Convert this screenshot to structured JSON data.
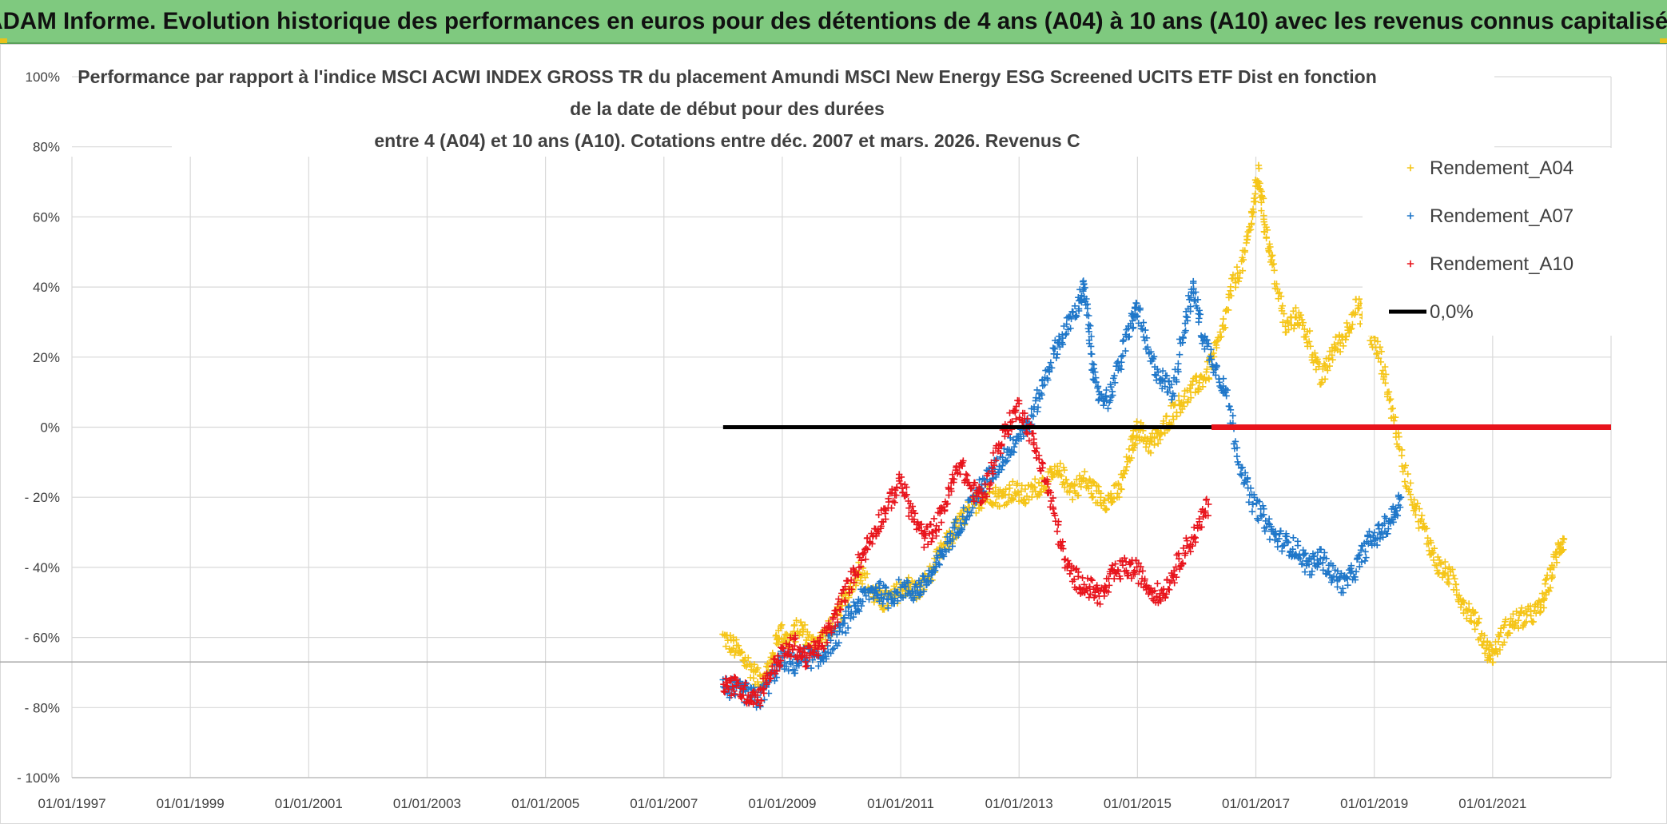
{
  "banner": {
    "text": "ADAM Informe. Evolution historique des performances en euros pour des détentions de 4 ans (A04) à 10 ans (A10) avec les revenus connus capitalisés"
  },
  "colors": {
    "banner_bg": "#7fc97f",
    "A04": "#f5c518",
    "A07": "#1f77c9",
    "A10": "#e8141c",
    "zero": "#000000"
  },
  "chart_data": {
    "type": "scatter",
    "title_lines": [
      "Performance par rapport à l'indice MSCI ACWI INDEX GROSS TR  du placement Amundi MSCI New Energy ESG Screened UCITS ETF Dist en fonction",
      "de la date de début pour des durées",
      "entre 4 (A04) et 10 ans (A10). Cotations entre déc. 2007 et mars. 2026. Revenus C"
    ],
    "xlabel": "",
    "ylabel": "",
    "x_range": [
      1997.0,
      2023.0
    ],
    "ylim": [
      -100,
      100
    ],
    "y_ticks": [
      {
        "value": 100,
        "label": "100%"
      },
      {
        "value": 80,
        "label": "80%"
      },
      {
        "value": 60,
        "label": "60%"
      },
      {
        "value": 40,
        "label": "40%"
      },
      {
        "value": 20,
        "label": "20%"
      },
      {
        "value": 0,
        "label": "0%"
      },
      {
        "value": -20,
        "label": "- 20%"
      },
      {
        "value": -40,
        "label": "- 40%"
      },
      {
        "value": -60,
        "label": "- 60%"
      },
      {
        "value": -80,
        "label": "- 80%"
      },
      {
        "value": -100,
        "label": "- 100%"
      }
    ],
    "x_ticks": [
      {
        "value": 1997,
        "label": "01/01/1997"
      },
      {
        "value": 1999,
        "label": "01/01/1999"
      },
      {
        "value": 2001,
        "label": "01/01/2001"
      },
      {
        "value": 2003,
        "label": "01/01/2003"
      },
      {
        "value": 2005,
        "label": "01/01/2005"
      },
      {
        "value": 2007,
        "label": "01/01/2007"
      },
      {
        "value": 2009,
        "label": "01/01/2009"
      },
      {
        "value": 2011,
        "label": "01/01/2011"
      },
      {
        "value": 2013,
        "label": "01/01/2013"
      },
      {
        "value": 2015,
        "label": "01/01/2015"
      },
      {
        "value": 2017,
        "label": "01/01/2017"
      },
      {
        "value": 2019,
        "label": "01/01/2019"
      },
      {
        "value": 2021,
        "label": "01/01/2021"
      }
    ],
    "grid": true,
    "legend_position": "top-right",
    "reference_line_y": -67,
    "series": [
      {
        "name": "Rendement_A04",
        "color": "#f5c518",
        "marker": "+",
        "points": [
          [
            2008.0,
            -60
          ],
          [
            2008.2,
            -63
          ],
          [
            2008.4,
            -67
          ],
          [
            2008.6,
            -72
          ],
          [
            2008.8,
            -68
          ],
          [
            2008.95,
            -58
          ],
          [
            2009.1,
            -61
          ],
          [
            2009.3,
            -57
          ],
          [
            2009.5,
            -62
          ],
          [
            2009.7,
            -60
          ],
          [
            2009.9,
            -55
          ],
          [
            2010.1,
            -48
          ],
          [
            2010.3,
            -40
          ],
          [
            2010.5,
            -47
          ],
          [
            2010.7,
            -50
          ],
          [
            2010.9,
            -48
          ],
          [
            2011.1,
            -45
          ],
          [
            2011.3,
            -47
          ],
          [
            2011.5,
            -42
          ],
          [
            2011.7,
            -35
          ],
          [
            2011.9,
            -30
          ],
          [
            2012.1,
            -25
          ],
          [
            2012.3,
            -21
          ],
          [
            2012.5,
            -19
          ],
          [
            2012.7,
            -20
          ],
          [
            2012.9,
            -18
          ],
          [
            2013.1,
            -20
          ],
          [
            2013.3,
            -17
          ],
          [
            2013.5,
            -15
          ],
          [
            2013.7,
            -13
          ],
          [
            2013.9,
            -18
          ],
          [
            2014.1,
            -15
          ],
          [
            2014.3,
            -19
          ],
          [
            2014.5,
            -21
          ],
          [
            2014.7,
            -18
          ],
          [
            2014.9,
            -6
          ],
          [
            2015.0,
            0
          ],
          [
            2015.2,
            -5
          ],
          [
            2015.4,
            -2
          ],
          [
            2015.6,
            5
          ],
          [
            2015.8,
            8
          ],
          [
            2016.0,
            12
          ],
          [
            2016.2,
            16
          ],
          [
            2016.4,
            25
          ],
          [
            2016.6,
            40
          ],
          [
            2016.8,
            48
          ],
          [
            2016.95,
            62
          ],
          [
            2017.05,
            72
          ],
          [
            2017.15,
            58
          ],
          [
            2017.3,
            45
          ],
          [
            2017.5,
            28
          ],
          [
            2017.7,
            32
          ],
          [
            2017.9,
            25
          ],
          [
            2018.1,
            13
          ],
          [
            2018.3,
            22
          ],
          [
            2018.5,
            26
          ],
          [
            2018.7,
            35
          ],
          [
            2018.9,
            28
          ],
          [
            2019.1,
            20
          ],
          [
            2019.3,
            5
          ],
          [
            2019.5,
            -12
          ],
          [
            2019.7,
            -23
          ],
          [
            2019.9,
            -32
          ],
          [
            2020.1,
            -40
          ],
          [
            2020.3,
            -43
          ],
          [
            2020.5,
            -50
          ],
          [
            2020.7,
            -55
          ],
          [
            2020.9,
            -63
          ],
          [
            2021.0,
            -65
          ],
          [
            2021.2,
            -58
          ],
          [
            2021.4,
            -55
          ],
          [
            2021.6,
            -54
          ],
          [
            2021.8,
            -52
          ],
          [
            2021.95,
            -44
          ],
          [
            2022.1,
            -35
          ],
          [
            2022.2,
            -32
          ]
        ]
      },
      {
        "name": "Rendement_A07",
        "color": "#1f77c9",
        "marker": "+",
        "points": [
          [
            2008.0,
            -74
          ],
          [
            2008.2,
            -75
          ],
          [
            2008.4,
            -76
          ],
          [
            2008.6,
            -78
          ],
          [
            2008.8,
            -72
          ],
          [
            2009.0,
            -66
          ],
          [
            2009.2,
            -68
          ],
          [
            2009.4,
            -65
          ],
          [
            2009.6,
            -67
          ],
          [
            2009.8,
            -62
          ],
          [
            2010.0,
            -58
          ],
          [
            2010.2,
            -52
          ],
          [
            2010.4,
            -48
          ],
          [
            2010.6,
            -46
          ],
          [
            2010.8,
            -49
          ],
          [
            2011.0,
            -46
          ],
          [
            2011.2,
            -47
          ],
          [
            2011.4,
            -45
          ],
          [
            2011.6,
            -40
          ],
          [
            2011.8,
            -33
          ],
          [
            2012.0,
            -27
          ],
          [
            2012.2,
            -22
          ],
          [
            2012.4,
            -16
          ],
          [
            2012.6,
            -12
          ],
          [
            2012.8,
            -7
          ],
          [
            2013.0,
            -2
          ],
          [
            2013.2,
            2
          ],
          [
            2013.4,
            12
          ],
          [
            2013.6,
            22
          ],
          [
            2013.8,
            28
          ],
          [
            2014.0,
            35
          ],
          [
            2014.1,
            40
          ],
          [
            2014.2,
            25
          ],
          [
            2014.3,
            10
          ],
          [
            2014.5,
            8
          ],
          [
            2014.7,
            18
          ],
          [
            2014.9,
            30
          ],
          [
            2015.0,
            34
          ],
          [
            2015.2,
            20
          ],
          [
            2015.4,
            14
          ],
          [
            2015.6,
            10
          ],
          [
            2015.8,
            30
          ],
          [
            2015.95,
            40
          ],
          [
            2016.1,
            26
          ],
          [
            2016.3,
            18
          ],
          [
            2016.5,
            10
          ],
          [
            2016.7,
            -8
          ],
          [
            2016.9,
            -20
          ],
          [
            2017.1,
            -25
          ],
          [
            2017.3,
            -31
          ],
          [
            2017.5,
            -33
          ],
          [
            2017.7,
            -35
          ],
          [
            2017.9,
            -40
          ],
          [
            2018.1,
            -37
          ],
          [
            2018.3,
            -42
          ],
          [
            2018.5,
            -45
          ],
          [
            2018.7,
            -40
          ],
          [
            2018.9,
            -33
          ],
          [
            2019.1,
            -30
          ],
          [
            2019.3,
            -26
          ],
          [
            2019.45,
            -20
          ]
        ]
      },
      {
        "name": "Rendement_A10",
        "color": "#e8141c",
        "marker": "+",
        "points": [
          [
            2008.0,
            -73
          ],
          [
            2008.2,
            -74
          ],
          [
            2008.4,
            -76
          ],
          [
            2008.6,
            -77
          ],
          [
            2008.8,
            -70
          ],
          [
            2009.0,
            -65
          ],
          [
            2009.2,
            -62
          ],
          [
            2009.4,
            -66
          ],
          [
            2009.6,
            -63
          ],
          [
            2009.8,
            -58
          ],
          [
            2010.0,
            -50
          ],
          [
            2010.2,
            -42
          ],
          [
            2010.4,
            -35
          ],
          [
            2010.6,
            -28
          ],
          [
            2010.8,
            -22
          ],
          [
            2011.0,
            -15
          ],
          [
            2011.2,
            -25
          ],
          [
            2011.4,
            -32
          ],
          [
            2011.6,
            -28
          ],
          [
            2011.8,
            -20
          ],
          [
            2012.0,
            -10
          ],
          [
            2012.2,
            -18
          ],
          [
            2012.4,
            -20
          ],
          [
            2012.6,
            -8
          ],
          [
            2012.8,
            0
          ],
          [
            2013.0,
            6
          ],
          [
            2013.2,
            -2
          ],
          [
            2013.4,
            -12
          ],
          [
            2013.6,
            -25
          ],
          [
            2013.8,
            -40
          ],
          [
            2014.0,
            -44
          ],
          [
            2014.2,
            -46
          ],
          [
            2014.4,
            -48
          ],
          [
            2014.6,
            -42
          ],
          [
            2014.8,
            -40
          ],
          [
            2015.0,
            -41
          ],
          [
            2015.2,
            -46
          ],
          [
            2015.4,
            -48
          ],
          [
            2015.6,
            -42
          ],
          [
            2015.8,
            -35
          ],
          [
            2016.0,
            -30
          ],
          [
            2016.2,
            -22
          ]
        ]
      }
    ],
    "reference_series": {
      "name": "0,0%",
      "black_range": [
        2008.0,
        2016.25
      ],
      "red_range": [
        2016.25,
        2023.0
      ],
      "y": 0
    }
  }
}
